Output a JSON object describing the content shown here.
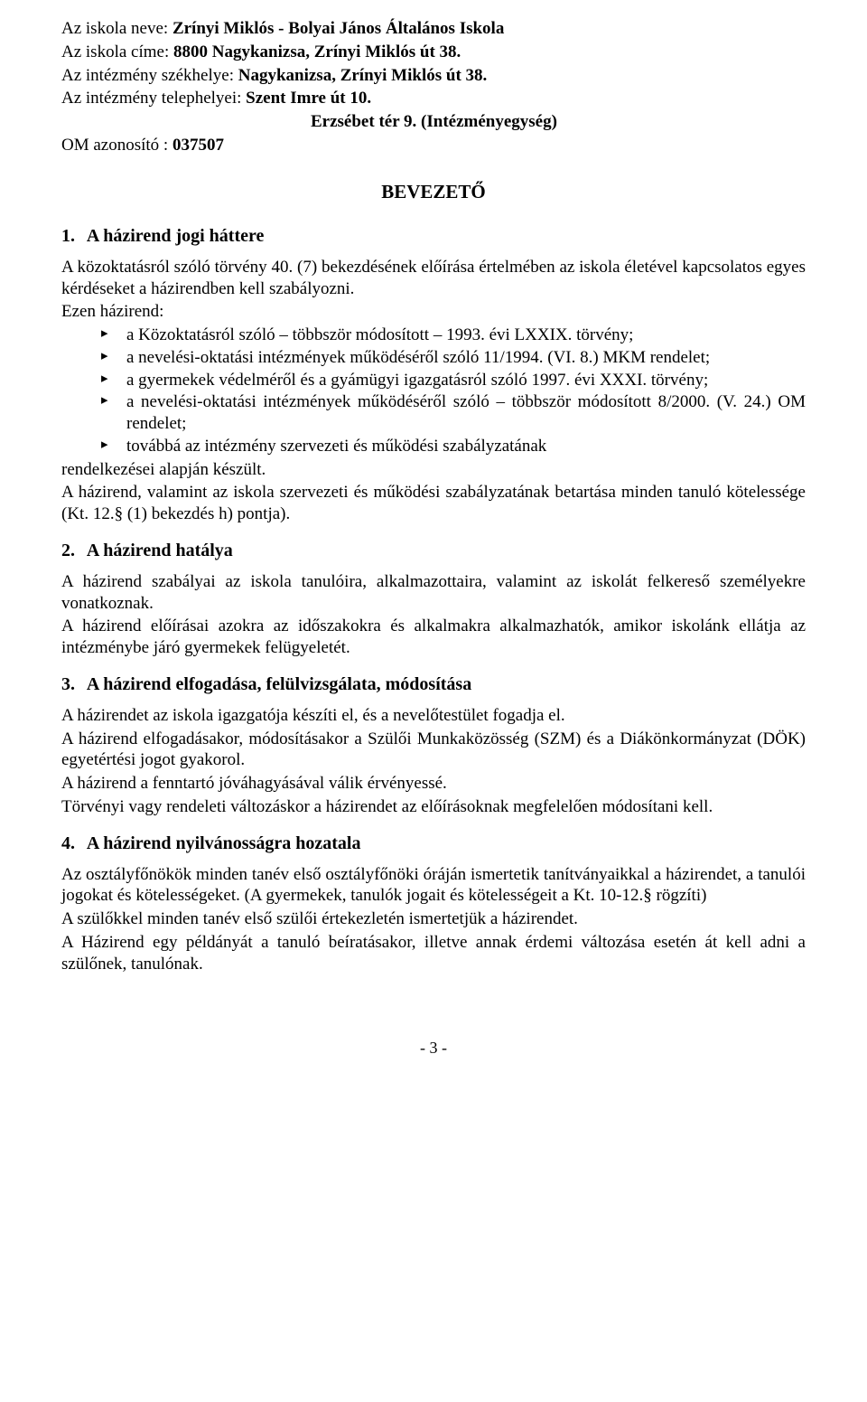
{
  "header": {
    "school_name_label": "Az iskola neve: ",
    "school_name_value": "Zrínyi Miklós - Bolyai János Általános Iskola",
    "school_address_label": "Az iskola címe: ",
    "school_address_value": "8800 Nagykanizsa, Zrínyi Miklós út 38.",
    "hq_label": "Az intézmény székhelye: ",
    "hq_value": "Nagykanizsa, Zrínyi Miklós út 38.",
    "site_label": "Az intézmény telephelyei: ",
    "site_value": "Szent Imre út 10.",
    "site_line2": "Erzsébet tér 9. (Intézményegység)",
    "om_label": "OM azonosító : ",
    "om_value": "037507"
  },
  "intro_title": "BEVEZETŐ",
  "sections": [
    {
      "num": "1.",
      "title": "A házirend jogi háttere",
      "p1": "A közoktatásról szóló törvény 40. (7) bekezdésének előírása értelmében az iskola életével kapcsolatos egyes kérdéseket a házirendben kell szabályozni.",
      "p2": "Ezen házirend:",
      "bullets": [
        "a Közoktatásról szóló – többször módosított – 1993. évi LXXIX. törvény;",
        "a nevelési-oktatási intézmények működéséről szóló 11/1994. (VI. 8.) MKM rendelet;",
        "a gyermekek védelméről és a gyámügyi igazgatásról szóló 1997. évi XXXI. törvény;",
        "a nevelési-oktatási intézmények működéséről szóló – többször módosított 8/2000. (V. 24.) OM rendelet;",
        "továbbá az intézmény szervezeti és működési szabályzatának"
      ],
      "p3": "rendelkezései alapján készült.",
      "p4": "A házirend, valamint az iskola szervezeti és működési szabályzatának betartása minden tanuló kötelessége (Kt. 12.§ (1) bekezdés h) pontja)."
    },
    {
      "num": "2.",
      "title": "A házirend hatálya",
      "p1": "A házirend szabályai az iskola tanulóira, alkalmazottaira, valamint az iskolát felkereső személyekre vonatkoznak.",
      "p2": "A házirend előírásai azokra az időszakokra és alkalmakra alkalmazhatók, amikor iskolánk ellátja az intézménybe járó gyermekek felügyeletét."
    },
    {
      "num": "3.",
      "title": "A házirend elfogadása, felülvizsgálata, módosítása",
      "p1": "A házirendet az iskola igazgatója készíti el, és a nevelőtestület fogadja el.",
      "p2": "A házirend elfogadásakor, módosításakor a Szülői Munkaközösség (SZM) és a Diákönkormányzat (DÖK) egyetértési jogot gyakorol.",
      "p3": "A házirend a fenntartó jóváhagyásával válik érvényessé.",
      "p4": "Törvényi vagy rendeleti változáskor a házirendet az előírásoknak megfelelően módosítani kell."
    },
    {
      "num": "4.",
      "title": "A házirend nyilvánosságra hozatala",
      "p1": "Az osztályfőnökök minden tanév első osztályfőnöki óráján ismertetik tanítványaikkal a házirendet, a tanulói jogokat és kötelességeket. (A gyermekek, tanulók jogait és kötelességeit a Kt. 10-12.§ rögzíti)",
      "p2": "A szülőkkel minden tanév első szülői értekezletén ismertetjük a házirendet.",
      "p3": "A Házirend egy példányát a tanuló beíratásakor, illetve annak érdemi változása esetén át kell adni a szülőnek, tanulónak."
    }
  ],
  "page_number": "- 3 -"
}
